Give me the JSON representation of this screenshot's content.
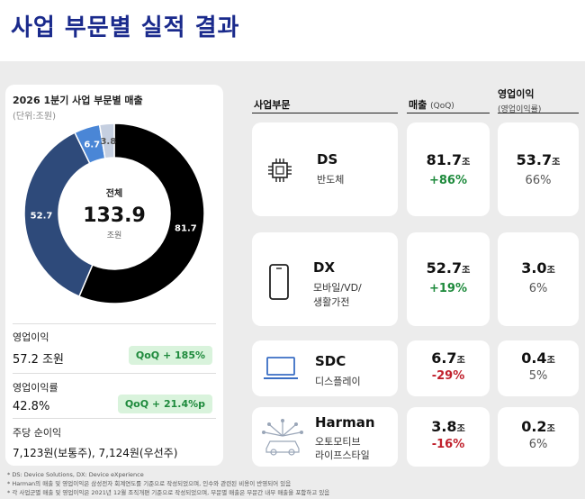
{
  "page_title": "사업 부문별 실적 결과",
  "left_panel": {
    "title": "2026 1분기 사업 부문별 매출",
    "unit": "(단위:조원)",
    "center": {
      "label": "전체",
      "value": "133.9",
      "unit": "조원"
    },
    "operating_profit": {
      "label": "영업이익",
      "value": "57.2 조원",
      "qoq": "QoQ + 185%"
    },
    "operating_margin": {
      "label": "영업이익률",
      "value": "42.8%",
      "qoq": "QoQ + 21.4%p"
    },
    "eps": {
      "label": "주당 순이익",
      "value": "7,123원(보통주), 7,124원(우선주)"
    }
  },
  "chart_data": {
    "type": "pie",
    "title": "2026 1분기 사업 부문별 매출",
    "unit": "조원",
    "slices": [
      {
        "label": "DS",
        "value": 81.7,
        "color": "#000000"
      },
      {
        "label": "DX",
        "value": 52.7,
        "color": "#2e4a7a"
      },
      {
        "label": "SDC",
        "value": 6.7,
        "color": "#4a86d6"
      },
      {
        "label": "Harman",
        "value": 3.8,
        "color": "#c5cfe0"
      }
    ],
    "total": 133.9
  },
  "table": {
    "headers": {
      "segment": "사업부문",
      "sales": "매출",
      "sales_sub": "(QoQ)",
      "op": "영업이익",
      "op_sub": "(영업이익률)"
    },
    "rows": [
      {
        "name": "DS",
        "desc1": "반도체",
        "desc2": "",
        "icon": "chip-icon",
        "sales": "81.7",
        "sales_unit": "조",
        "sales_chg": "+86%",
        "op": "53.7",
        "op_unit": "조",
        "margin": "66%"
      },
      {
        "name": "DX",
        "desc1": "모바일/VD/",
        "desc2": "생활가전",
        "icon": "smartphone-icon",
        "sales": "52.7",
        "sales_unit": "조",
        "sales_chg": "+19%",
        "op": "3.0",
        "op_unit": "조",
        "margin": "6%"
      },
      {
        "name": "SDC",
        "desc1": "디스플레이",
        "desc2": "",
        "icon": "laptop-icon",
        "sales": "6.7",
        "sales_unit": "조",
        "sales_chg": "-29%",
        "op": "0.4",
        "op_unit": "조",
        "margin": "5%"
      },
      {
        "name": "Harman",
        "desc1": "오토모티브",
        "desc2": "라이프스타일",
        "icon": "connected-car-icon",
        "sales": "3.8",
        "sales_unit": "조",
        "sales_chg": "-16%",
        "op": "0.2",
        "op_unit": "조",
        "margin": "6%"
      }
    ]
  },
  "footnotes": [
    "* DS: Device Solutions, DX: Device eXperience",
    "* Harman의 매출 및 영업이익은 삼성전자 회계연도를 기준으로 작성되었으며, 인수와 관련된 비용이 반영되어 있음",
    "* 각 사업군별 매출 및 영업이익은 2021년 12월 조직개편 기준으로 작성되었으며, 부문별 매출은 부문간 내부 매출을 포함하고 있음"
  ]
}
